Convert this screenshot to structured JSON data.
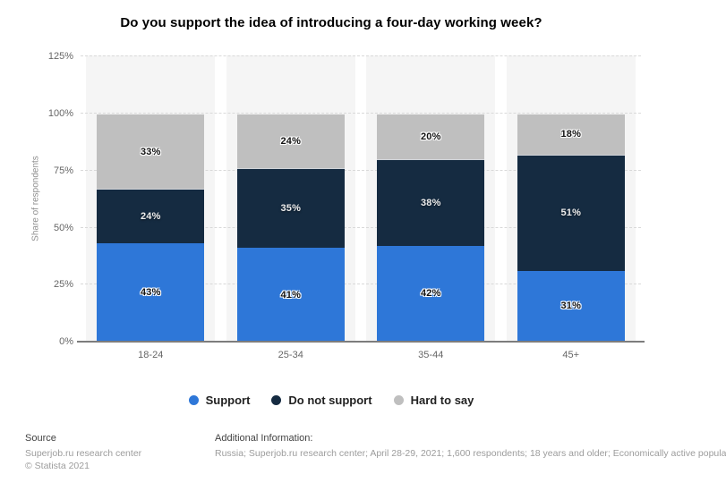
{
  "chart_data": {
    "type": "stacked_bar",
    "title": "Do you support the idea of introducing a four-day working week?",
    "ylabel": "Share of respondents",
    "categories": [
      "18-24",
      "25-34",
      "35-44",
      "45+"
    ],
    "series": [
      {
        "name": "Support",
        "color": "#2e77d8",
        "label_text_color": "#131313",
        "label_halo": "#ffffff",
        "values": [
          43,
          41,
          42,
          31
        ]
      },
      {
        "name": "Do not support",
        "color": "#152b41",
        "label_text_color": "#ededed",
        "label_halo": "#0a1726",
        "values": [
          24,
          35,
          38,
          51
        ]
      },
      {
        "name": "Hard to say",
        "color": "#bfbfbf",
        "label_text_color": "#131313",
        "label_halo": "#ffffff",
        "values": [
          33,
          24,
          20,
          18
        ]
      }
    ],
    "value_suffix": "%",
    "yticks": [
      "0%",
      "25%",
      "50%",
      "75%",
      "100%",
      "125%"
    ],
    "ytick_values": [
      0,
      25,
      50,
      75,
      100,
      125
    ],
    "ylim": [
      0,
      125
    ],
    "grid": "horizontal-dashed",
    "legend_position": "bottom"
  },
  "footer": {
    "source_label": "Source",
    "source_name": "Superjob.ru research center",
    "copyright": "© Statista 2021",
    "additional_label": "Additional Information:",
    "additional_text": "Russia; Superjob.ru research center; April 28-29, 2021; 1,600 respondents; 18 years and older; Economically active popula"
  }
}
